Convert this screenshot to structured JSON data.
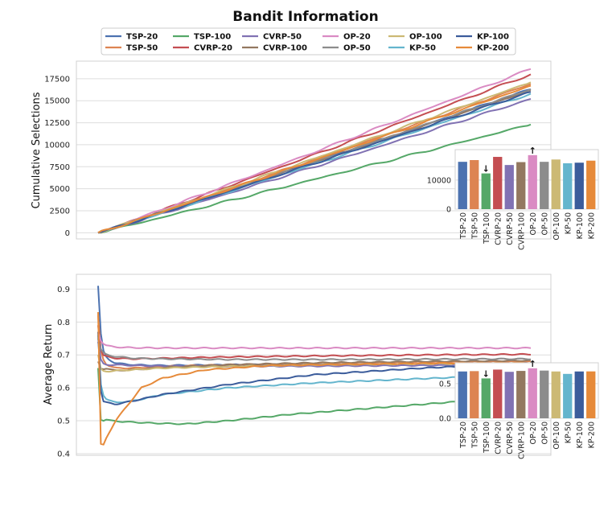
{
  "figure": {
    "title": "Bandit Information"
  },
  "colors": {
    "TSP-20": "#4c72b0",
    "TSP-50": "#dd8452",
    "TSP-100": "#55a868",
    "CVRP-20": "#c44e52",
    "CVRP-50": "#8172b3",
    "CVRP-100": "#937860",
    "OP-20": "#da8bc3",
    "OP-50": "#8c8c8c",
    "OP-100": "#ccb974",
    "KP-50": "#64b5cd",
    "KP-100": "#3b5c9b",
    "KP-200": "#e68a3a"
  },
  "legend": [
    "TSP-20",
    "TSP-50",
    "TSP-100",
    "CVRP-20",
    "CVRP-50",
    "CVRP-100",
    "OP-20",
    "OP-50",
    "OP-100",
    "KP-50",
    "KP-100",
    "KP-200"
  ],
  "chart_data": [
    {
      "type": "line",
      "ylabel": "Cumulative Selections",
      "xlabel": "",
      "x_range": [
        0,
        1
      ],
      "ylim": [
        -700,
        19500
      ],
      "yticks": [
        0,
        2500,
        5000,
        7500,
        10000,
        12500,
        15000,
        17500
      ],
      "yticklabels": [
        "0",
        "2500",
        "5000",
        "7500",
        "10000",
        "12500",
        "15000",
        "17500"
      ],
      "series": [
        {
          "name": "TSP-20",
          "final": 16300
        },
        {
          "name": "TSP-50",
          "final": 16900
        },
        {
          "name": "TSP-100",
          "final": 12300
        },
        {
          "name": "CVRP-20",
          "final": 18000
        },
        {
          "name": "CVRP-50",
          "final": 15200
        },
        {
          "name": "CVRP-100",
          "final": 16200
        },
        {
          "name": "OP-20",
          "final": 18600
        },
        {
          "name": "OP-50",
          "final": 16300
        },
        {
          "name": "OP-100",
          "final": 17100
        },
        {
          "name": "KP-50",
          "final": 15800
        },
        {
          "name": "KP-100",
          "final": 16000
        },
        {
          "name": "KP-200",
          "final": 16700
        }
      ],
      "inset": {
        "type": "bar",
        "categories": [
          "TSP-20",
          "TSP-50",
          "TSP-100",
          "CVRP-20",
          "CVRP-50",
          "CVRP-100",
          "OP-20",
          "OP-50",
          "OP-100",
          "KP-50",
          "KP-100",
          "KP-200"
        ],
        "values": [
          16300,
          16900,
          12300,
          18000,
          15200,
          16200,
          18600,
          16300,
          17100,
          15800,
          16000,
          16700
        ],
        "ylim": [
          0,
          20500
        ],
        "yticks": [
          0,
          10000
        ],
        "yticklabels": [
          "0",
          "10000"
        ],
        "min_marker": "↓",
        "max_marker": "↑"
      }
    },
    {
      "type": "line",
      "ylabel": "Average Return",
      "xlabel": "",
      "x_range": [
        0,
        1
      ],
      "ylim": [
        0.395,
        0.945
      ],
      "yticks": [
        0.4,
        0.5,
        0.6,
        0.7,
        0.8,
        0.9
      ],
      "yticklabels": [
        "0.4",
        "0.5",
        "0.6",
        "0.7",
        "0.8",
        "0.9"
      ],
      "series": [
        {
          "name": "TSP-20",
          "x": [
            0,
            0.005,
            0.01,
            0.02,
            0.04,
            0.08,
            0.15,
            0.3,
            0.5,
            0.75,
            1.0
          ],
          "y": [
            0.91,
            0.78,
            0.72,
            0.69,
            0.675,
            0.67,
            0.668,
            0.67,
            0.672,
            0.674,
            0.675
          ]
        },
        {
          "name": "TSP-50",
          "x": [
            0,
            0.005,
            0.01,
            0.02,
            0.04,
            0.08,
            0.15,
            0.3,
            0.5,
            0.75,
            1.0
          ],
          "y": [
            0.82,
            0.72,
            0.69,
            0.67,
            0.66,
            0.66,
            0.665,
            0.67,
            0.675,
            0.678,
            0.68
          ]
        },
        {
          "name": "TSP-100",
          "x": [
            0,
            0.004,
            0.008,
            0.015,
            0.03,
            0.06,
            0.12,
            0.2,
            0.3,
            0.45,
            0.6,
            0.8,
            1.0
          ],
          "y": [
            0.66,
            0.52,
            0.49,
            0.505,
            0.5,
            0.497,
            0.493,
            0.49,
            0.5,
            0.52,
            0.535,
            0.555,
            0.575
          ]
        },
        {
          "name": "CVRP-20",
          "x": [
            0,
            0.005,
            0.01,
            0.02,
            0.04,
            0.08,
            0.15,
            0.3,
            0.5,
            0.75,
            1.0
          ],
          "y": [
            0.79,
            0.72,
            0.7,
            0.695,
            0.69,
            0.688,
            0.69,
            0.694,
            0.697,
            0.7,
            0.702
          ]
        },
        {
          "name": "CVRP-50",
          "x": [
            0,
            0.005,
            0.01,
            0.02,
            0.04,
            0.08,
            0.15,
            0.3,
            0.5,
            0.75,
            1.0
          ],
          "y": [
            0.74,
            0.69,
            0.675,
            0.67,
            0.67,
            0.668,
            0.666,
            0.665,
            0.666,
            0.668,
            0.67
          ]
        },
        {
          "name": "CVRP-100",
          "x": [
            0,
            0.005,
            0.01,
            0.02,
            0.04,
            0.08,
            0.15,
            0.3,
            0.5,
            0.75,
            1.0
          ],
          "y": [
            0.68,
            0.66,
            0.655,
            0.66,
            0.652,
            0.655,
            0.662,
            0.67,
            0.676,
            0.68,
            0.683
          ]
        },
        {
          "name": "OP-20",
          "x": [
            0,
            0.005,
            0.01,
            0.02,
            0.04,
            0.08,
            0.15,
            0.3,
            0.5,
            0.75,
            1.0
          ],
          "y": [
            0.77,
            0.745,
            0.735,
            0.728,
            0.724,
            0.722,
            0.721,
            0.721,
            0.721,
            0.721,
            0.721
          ]
        },
        {
          "name": "OP-50",
          "x": [
            0,
            0.005,
            0.01,
            0.02,
            0.04,
            0.08,
            0.15,
            0.3,
            0.5,
            0.75,
            1.0
          ],
          "y": [
            0.75,
            0.72,
            0.71,
            0.7,
            0.695,
            0.69,
            0.688,
            0.686,
            0.686,
            0.687,
            0.688
          ]
        },
        {
          "name": "OP-100",
          "x": [
            0,
            0.005,
            0.01,
            0.02,
            0.04,
            0.08,
            0.15,
            0.3,
            0.5,
            0.75,
            1.0
          ],
          "y": [
            0.7,
            0.66,
            0.652,
            0.65,
            0.652,
            0.655,
            0.66,
            0.665,
            0.67,
            0.673,
            0.675
          ]
        },
        {
          "name": "KP-50",
          "x": [
            0,
            0.005,
            0.01,
            0.02,
            0.04,
            0.08,
            0.15,
            0.3,
            0.5,
            0.75,
            1.0
          ],
          "y": [
            0.76,
            0.62,
            0.58,
            0.565,
            0.555,
            0.56,
            0.58,
            0.6,
            0.615,
            0.628,
            0.64
          ]
        },
        {
          "name": "KP-100",
          "x": [
            0,
            0.005,
            0.01,
            0.02,
            0.04,
            0.08,
            0.15,
            0.3,
            0.5,
            0.75,
            1.0
          ],
          "y": [
            0.77,
            0.6,
            0.56,
            0.555,
            0.55,
            0.56,
            0.58,
            0.61,
            0.64,
            0.66,
            0.675
          ]
        },
        {
          "name": "KP-200",
          "x": [
            0,
            0.003,
            0.006,
            0.01,
            0.02,
            0.04,
            0.07,
            0.1,
            0.15,
            0.25,
            0.4,
            0.6,
            0.8,
            1.0
          ],
          "y": [
            0.83,
            0.48,
            0.43,
            0.42,
            0.45,
            0.5,
            0.55,
            0.6,
            0.63,
            0.655,
            0.668,
            0.672,
            0.675,
            0.676
          ]
        }
      ],
      "inset": {
        "type": "bar",
        "categories": [
          "TSP-20",
          "TSP-50",
          "TSP-100",
          "CVRP-20",
          "CVRP-50",
          "CVRP-100",
          "OP-20",
          "OP-50",
          "OP-100",
          "KP-50",
          "KP-100",
          "KP-200"
        ],
        "values": [
          0.675,
          0.68,
          0.575,
          0.702,
          0.67,
          0.683,
          0.721,
          0.688,
          0.675,
          0.64,
          0.675,
          0.676
        ],
        "ylim": [
          0,
          0.8
        ],
        "yticks": [
          0.0,
          0.5
        ],
        "yticklabels": [
          "0.0",
          "0.5"
        ],
        "min_marker": "↓",
        "max_marker": "↑"
      }
    }
  ]
}
